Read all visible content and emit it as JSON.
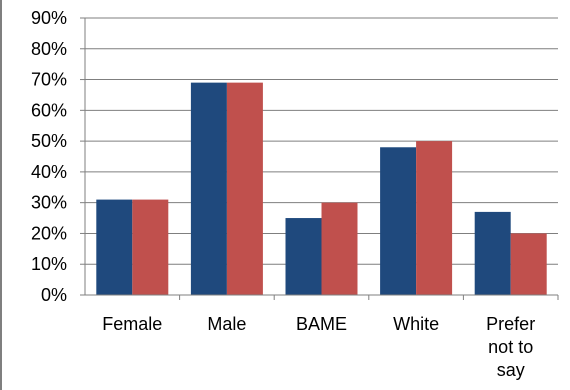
{
  "chart_data": {
    "type": "bar",
    "categories": [
      "Female",
      "Male",
      "BAME",
      "White",
      "Prefer not to say"
    ],
    "category_lines": [
      [
        "Female"
      ],
      [
        "Male"
      ],
      [
        "BAME"
      ],
      [
        "White"
      ],
      [
        "Prefer",
        "not to",
        "say"
      ]
    ],
    "series": [
      {
        "values": [
          31,
          69,
          25,
          48,
          27
        ],
        "color": "#1f497d"
      },
      {
        "values": [
          31,
          69,
          30,
          50,
          20
        ],
        "color": "#c0504d"
      }
    ],
    "yticks": [
      "0%",
      "10%",
      "20%",
      "30%",
      "40%",
      "50%",
      "60%",
      "70%",
      "80%",
      "90%"
    ],
    "ylim": [
      0,
      90
    ],
    "title": "",
    "xlabel": "",
    "ylabel": "",
    "grid": true,
    "legend": false
  }
}
